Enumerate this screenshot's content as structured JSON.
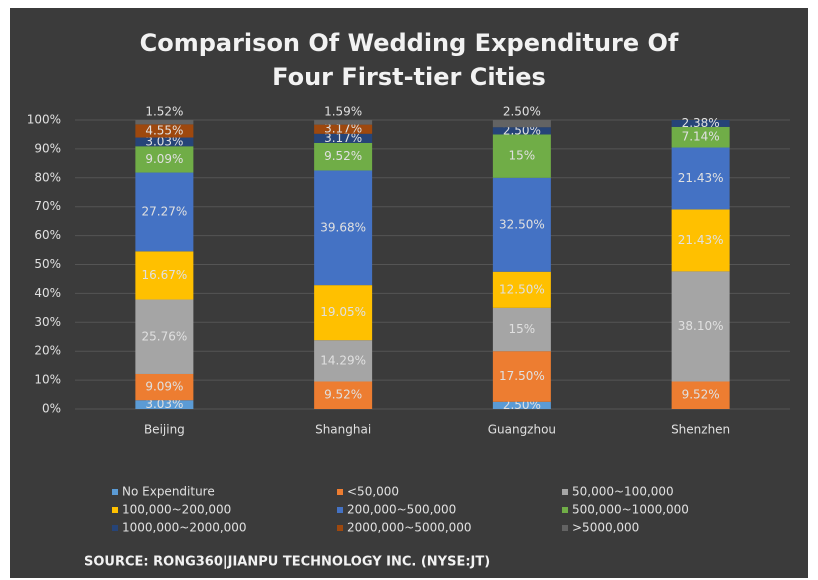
{
  "chart_data": {
    "type": "stacked_bar",
    "title": [
      "Comparison Of Wedding Expenditure Of",
      "Four First-tier Cities"
    ],
    "source": "SOURCE: RONG360|JIANPU TECHNOLOGY INC. (NYSE:JT)",
    "categories": [
      "Beijing",
      "Shanghai",
      "Guangzhou",
      "Shenzhen"
    ],
    "ylim": [
      0,
      100
    ],
    "yticks": [
      {
        "value": 0,
        "label": "0%"
      },
      {
        "value": 10,
        "label": "10%"
      },
      {
        "value": 20,
        "label": "20%"
      },
      {
        "value": 30,
        "label": "30%"
      },
      {
        "value": 40,
        "label": "40%"
      },
      {
        "value": 50,
        "label": "50%"
      },
      {
        "value": 60,
        "label": "60%"
      },
      {
        "value": 70,
        "label": "70%"
      },
      {
        "value": 80,
        "label": "80%"
      },
      {
        "value": 90,
        "label": "90%"
      },
      {
        "value": 100,
        "label": "100%"
      }
    ],
    "grid": true,
    "legend": "bottom",
    "series": [
      {
        "name": "No Expenditure",
        "color": "#5b9bd5",
        "values": [
          3.03,
          null,
          2.5,
          null
        ],
        "value_labels": [
          "3.03%",
          null,
          "2.50%",
          null
        ]
      },
      {
        "name": "<50,000",
        "color": "#ed7d31",
        "values": [
          9.09,
          9.52,
          17.5,
          9.52
        ],
        "value_labels": [
          "9.09%",
          "9.52%",
          "17.50%",
          "9.52%"
        ]
      },
      {
        "name": "50,000~100,000",
        "color": "#a5a5a5",
        "values": [
          25.76,
          14.29,
          15,
          38.1
        ],
        "value_labels": [
          "25.76%",
          "14.29%",
          "15%",
          "38.10%"
        ]
      },
      {
        "name": "100,000~200,000",
        "color": "#ffc000",
        "values": [
          16.67,
          19.05,
          12.5,
          21.43
        ],
        "value_labels": [
          "16.67%",
          "19.05%",
          "12.50%",
          "21.43%"
        ]
      },
      {
        "name": "200,000~500,000",
        "color": "#4472c4",
        "values": [
          27.27,
          39.68,
          32.5,
          21.43
        ],
        "value_labels": [
          "27.27%",
          "39.68%",
          "32.50%",
          "21.43%"
        ]
      },
      {
        "name": "500,000~1000,000",
        "color": "#70ad47",
        "values": [
          9.09,
          9.52,
          15,
          7.14
        ],
        "value_labels": [
          "9.09%",
          "9.52%",
          "15%",
          "7.14%"
        ]
      },
      {
        "name": "1000,000~2000,000",
        "color": "#264478",
        "values": [
          3.03,
          3.17,
          2.5,
          2.38
        ],
        "value_labels": [
          "3.03%",
          "3.17%",
          "2.50%",
          "2.38%"
        ]
      },
      {
        "name": "2000,000~5000,000",
        "color": "#9e480e",
        "values": [
          4.55,
          3.17,
          null,
          null
        ],
        "value_labels": [
          "4.55%",
          "3.17%",
          null,
          null
        ]
      },
      {
        "name": ">5000,000",
        "color": "#636363",
        "values": [
          1.52,
          1.59,
          2.5,
          null
        ],
        "value_labels": [
          "1.52%",
          "1.59%",
          "2.50%",
          null
        ]
      }
    ]
  }
}
